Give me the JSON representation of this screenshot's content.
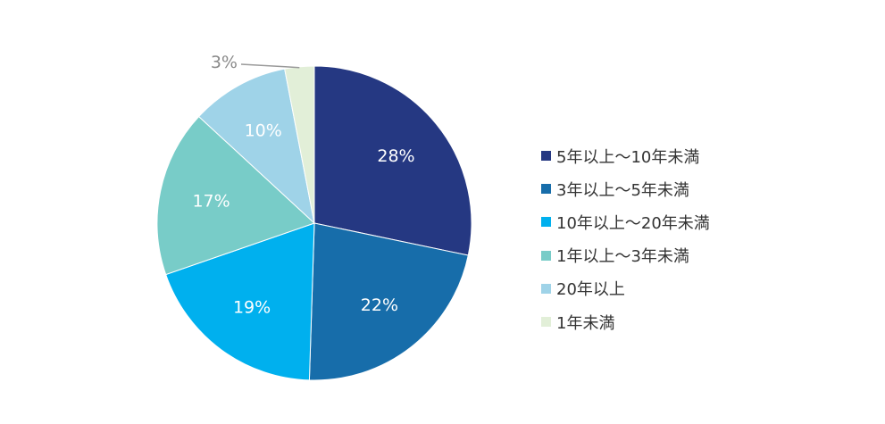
{
  "chart_data": {
    "type": "pie",
    "start": "12 o'clock",
    "direction": "clockwise",
    "slices": [
      {
        "name": "5年以上〜10年未満",
        "value": 28,
        "label": "28%",
        "color": "#253882"
      },
      {
        "name": "3年以上〜5年未満",
        "value": 22,
        "label": "22%",
        "color": "#176daa"
      },
      {
        "name": "10年以上〜20年未満",
        "value": 19,
        "label": "19%",
        "color": "#00b0ee"
      },
      {
        "name": "1年以上〜3年未満",
        "value": 17,
        "label": "17%",
        "color": "#78ccc8"
      },
      {
        "name": "20年以上",
        "value": 10,
        "label": "10%",
        "color": "#9fd3e8"
      },
      {
        "name": "1年未満",
        "value": 3,
        "label": "3%",
        "color": "#e2efd8"
      }
    ],
    "legend_position": "right"
  }
}
